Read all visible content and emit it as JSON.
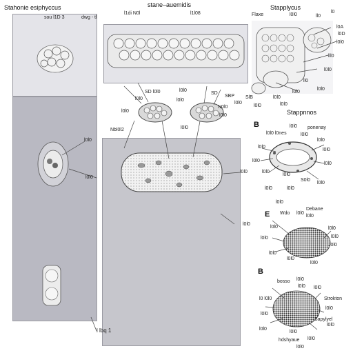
{
  "titles": {
    "top_left": "Stahonie esiphyccus",
    "top_center": "stane–auemidis",
    "top_right": "Stapplycus",
    "right_mid": "Stappnnos"
  },
  "panel_letters": {
    "b1": "B",
    "e": "E",
    "b2": "B"
  },
  "labels": {
    "tl1": "sou l1D 3",
    "tl2": "dwg - tl",
    "tc1": "l1di N0l",
    "tc2": "l1l08",
    "tr1": "Flaxe",
    "tr2": "l0l0",
    "tr3": "l0",
    "tr4": "ll0",
    "tr5": "l0A",
    "tr6": "l0D",
    "tr7": "l0l0",
    "tr8": "lll0",
    "tr9": "l0l0",
    "tr10": "ll0",
    "tr11": "l0l0",
    "tr12": "SlB",
    "tr13": "l0l0",
    "tr14": "l0l0",
    "tr15": "l0l0",
    "tr16": "l0l0",
    "mc1": "SD l0l0",
    "mc2": "l0l0",
    "mc3": "l0l0",
    "mc4": "l0l0",
    "mc5": "l0l0",
    "mc6": "SD",
    "mc7": "N0l0",
    "mc8": "SBP",
    "mc9": "l0l0",
    "mc10": "l0l0",
    "mc11": "l0l0",
    "mc12": "Nbl0l2",
    "mc13": "l0l0",
    "mc14": "l0l0",
    "mc15": "l0l0",
    "ml1": "l0l0",
    "bl1": "l lbq 1",
    "b1a": "l0l0 l0nes",
    "b1b": "l0l0",
    "b1c": "ponenay",
    "b1d": "l0l0",
    "b1e": "l0l0",
    "b1f": "l0l0",
    "b1g": "l0l0",
    "b1h": "l0l0",
    "b1i": "l0l0",
    "b1j": "l0l0",
    "b1k": "l0l0",
    "b1l": "S0l0",
    "b1m": "l0l0",
    "b1n": "l0l0",
    "b1o": "l0l0",
    "b1p": "l0l0",
    "ea": "Debane",
    "eb": "l0l0",
    "ec": "l0l0",
    "ed": "Wdo",
    "ee": "l0l0",
    "ef": "l0l0",
    "eg": "l0l0",
    "eh": "l0l0",
    "ei": "l0l0",
    "ej": "l0l0",
    "ek": "l0l0",
    "el": "l0l0",
    "b2a": "bosso",
    "b2b": "l0l0",
    "b2c": "l0l0",
    "b2d": "l0l0",
    "b2e": "l0 l0l0",
    "b2f": "Strokton",
    "b2g": "l0l0",
    "b2h": "l0l0",
    "b2i": "Sapylyel",
    "b2j": "l0l0",
    "b2k": "hdshyaue",
    "b2l": "l0l0",
    "b2m": "l0l0",
    "b2n": "l0l0",
    "b2o": "l0l0"
  },
  "colors": {
    "panel_fill": "#c9c9cf",
    "panel_light": "#e4e4e9",
    "line": "#444444",
    "cell": "#eeeeee"
  }
}
